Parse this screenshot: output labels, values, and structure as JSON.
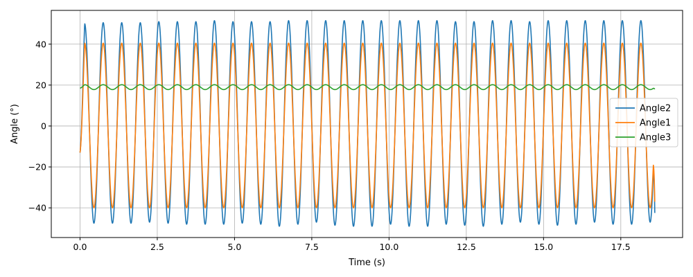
{
  "chart_data": {
    "type": "line",
    "title": "",
    "xlabel": "Time (s)",
    "ylabel": "Angle (°)",
    "xlim": [
      -0.93,
      19.5
    ],
    "ylim": [
      -54.5,
      56.5
    ],
    "grid": true,
    "legend_position": "center-right",
    "x_ticks": [
      0.0,
      2.5,
      5.0,
      7.5,
      10.0,
      12.5,
      15.0,
      17.5
    ],
    "x_tick_labels": [
      "0.0",
      "2.5",
      "5.0",
      "7.5",
      "10.0",
      "12.5",
      "15.0",
      "17.5"
    ],
    "y_ticks": [
      -40,
      -20,
      0,
      20,
      40
    ],
    "y_tick_labels": [
      "−40",
      "−20",
      "0",
      "20",
      "40"
    ],
    "x_range": [
      0.0,
      18.6
    ],
    "series": [
      {
        "name": "Angle2",
        "color": "#1f77b4",
        "shape": "sinusoid",
        "period_s": 0.6,
        "peak_max": [
          50.0,
          50.5,
          50.5,
          50.5,
          51.0,
          51.0,
          51.0,
          51.5,
          51.0,
          51.0,
          51.0,
          51.5,
          51.5,
          51.5,
          51.5,
          51.5,
          51.5,
          51.5,
          51.5,
          51.5,
          51.0,
          51.0,
          51.5,
          51.5,
          51.0,
          51.5,
          51.5,
          51.5,
          51.5,
          51.5,
          51.5
        ],
        "trough_min": [
          -47.5,
          -47.5,
          -47.5,
          -47.0,
          -47.5,
          -48.0,
          -48.0,
          -48.0,
          -47.5,
          -48.0,
          -49.0,
          -48.0,
          -47.0,
          -48.5,
          -49.0,
          -49.0,
          -48.0,
          -49.0,
          -49.0,
          -48.0,
          -48.5,
          -49.0,
          -48.0,
          -47.0,
          -48.0,
          -48.5,
          -48.0,
          -47.0,
          -48.0,
          -48.0,
          -47.0
        ],
        "start_value": -13.0,
        "end_value": -42.5
      },
      {
        "name": "Angle1",
        "color": "#ff7f0e",
        "shape": "sinusoid",
        "period_s": 0.6,
        "peak_max": 40.5,
        "trough_min": -40.0,
        "start_value": -13.0,
        "end_value": -37.0
      },
      {
        "name": "Angle3",
        "color": "#2ca02c",
        "shape": "sinusoid",
        "period_s": 0.6,
        "center": 19.0,
        "amplitude": 1.2,
        "start_value": 18.5,
        "end_value": 18.0
      }
    ]
  }
}
